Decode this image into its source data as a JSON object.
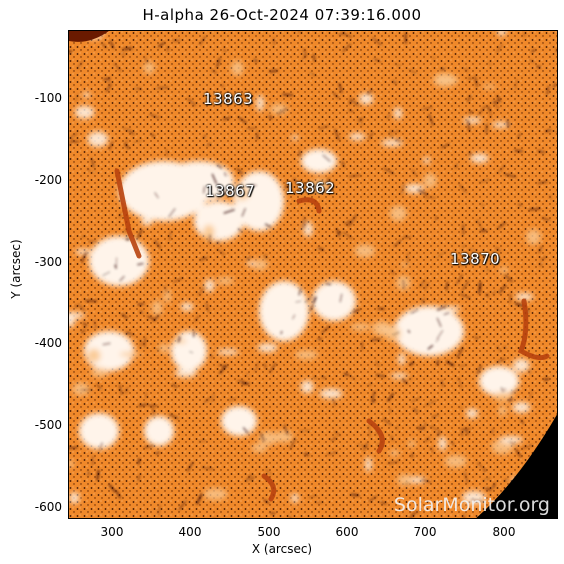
{
  "title": "H-alpha 26-Oct-2024 07:39:16.000",
  "axes": {
    "xlabel": "X (arcsec)",
    "ylabel": "Y (arcsec)",
    "xticks": [
      "300",
      "400",
      "500",
      "600",
      "700",
      "800"
    ],
    "yticks": [
      "-100",
      "-200",
      "-300",
      "-400",
      "-500",
      "-600"
    ]
  },
  "active_regions": [
    "13863",
    "13867",
    "13862",
    "13870"
  ],
  "watermark": "SolarMonitor.org",
  "colors": {
    "disk_base": "#f08a2a",
    "bright": "#fff4ea",
    "dark_fibril": "#2a0a00",
    "filament": "#b8420e",
    "space": "#000000"
  }
}
